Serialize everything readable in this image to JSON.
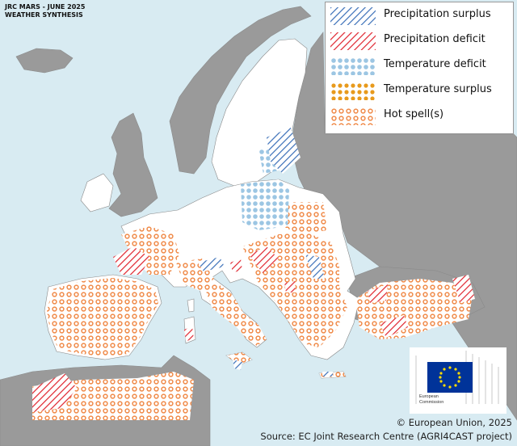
{
  "header": {
    "line1": "JRC MARS - JUNE 2025",
    "line2": "WEATHER SYNTHESIS"
  },
  "legend": {
    "items": [
      {
        "label": "Precipitation surplus",
        "pattern": "hatch-blue",
        "color": "#3a6fb8"
      },
      {
        "label": "Precipitation deficit",
        "pattern": "hatch-red",
        "color": "#e0242e"
      },
      {
        "label": "Temperature deficit",
        "pattern": "dots-blue",
        "color": "#9cc6e3"
      },
      {
        "label": "Temperature surplus",
        "pattern": "dots-orange",
        "color": "#e89a1c"
      },
      {
        "label": "Hot spell(s)",
        "pattern": "rings-orange",
        "color": "#f08a48"
      }
    ]
  },
  "credits": {
    "copyright": "© European Union, 2025",
    "source": "Source: EC Joint Research Centre (AGRI4CAST project)"
  },
  "logo": {
    "line1": "European",
    "line2": "Commission",
    "flag_color": "#003399",
    "star_color": "#ffdd00"
  },
  "map_colors": {
    "sea": "#d8ebf2",
    "eu_land": "#ffffff",
    "non_eu_land": "#9a9a9a",
    "border": "#8a8a8a"
  }
}
